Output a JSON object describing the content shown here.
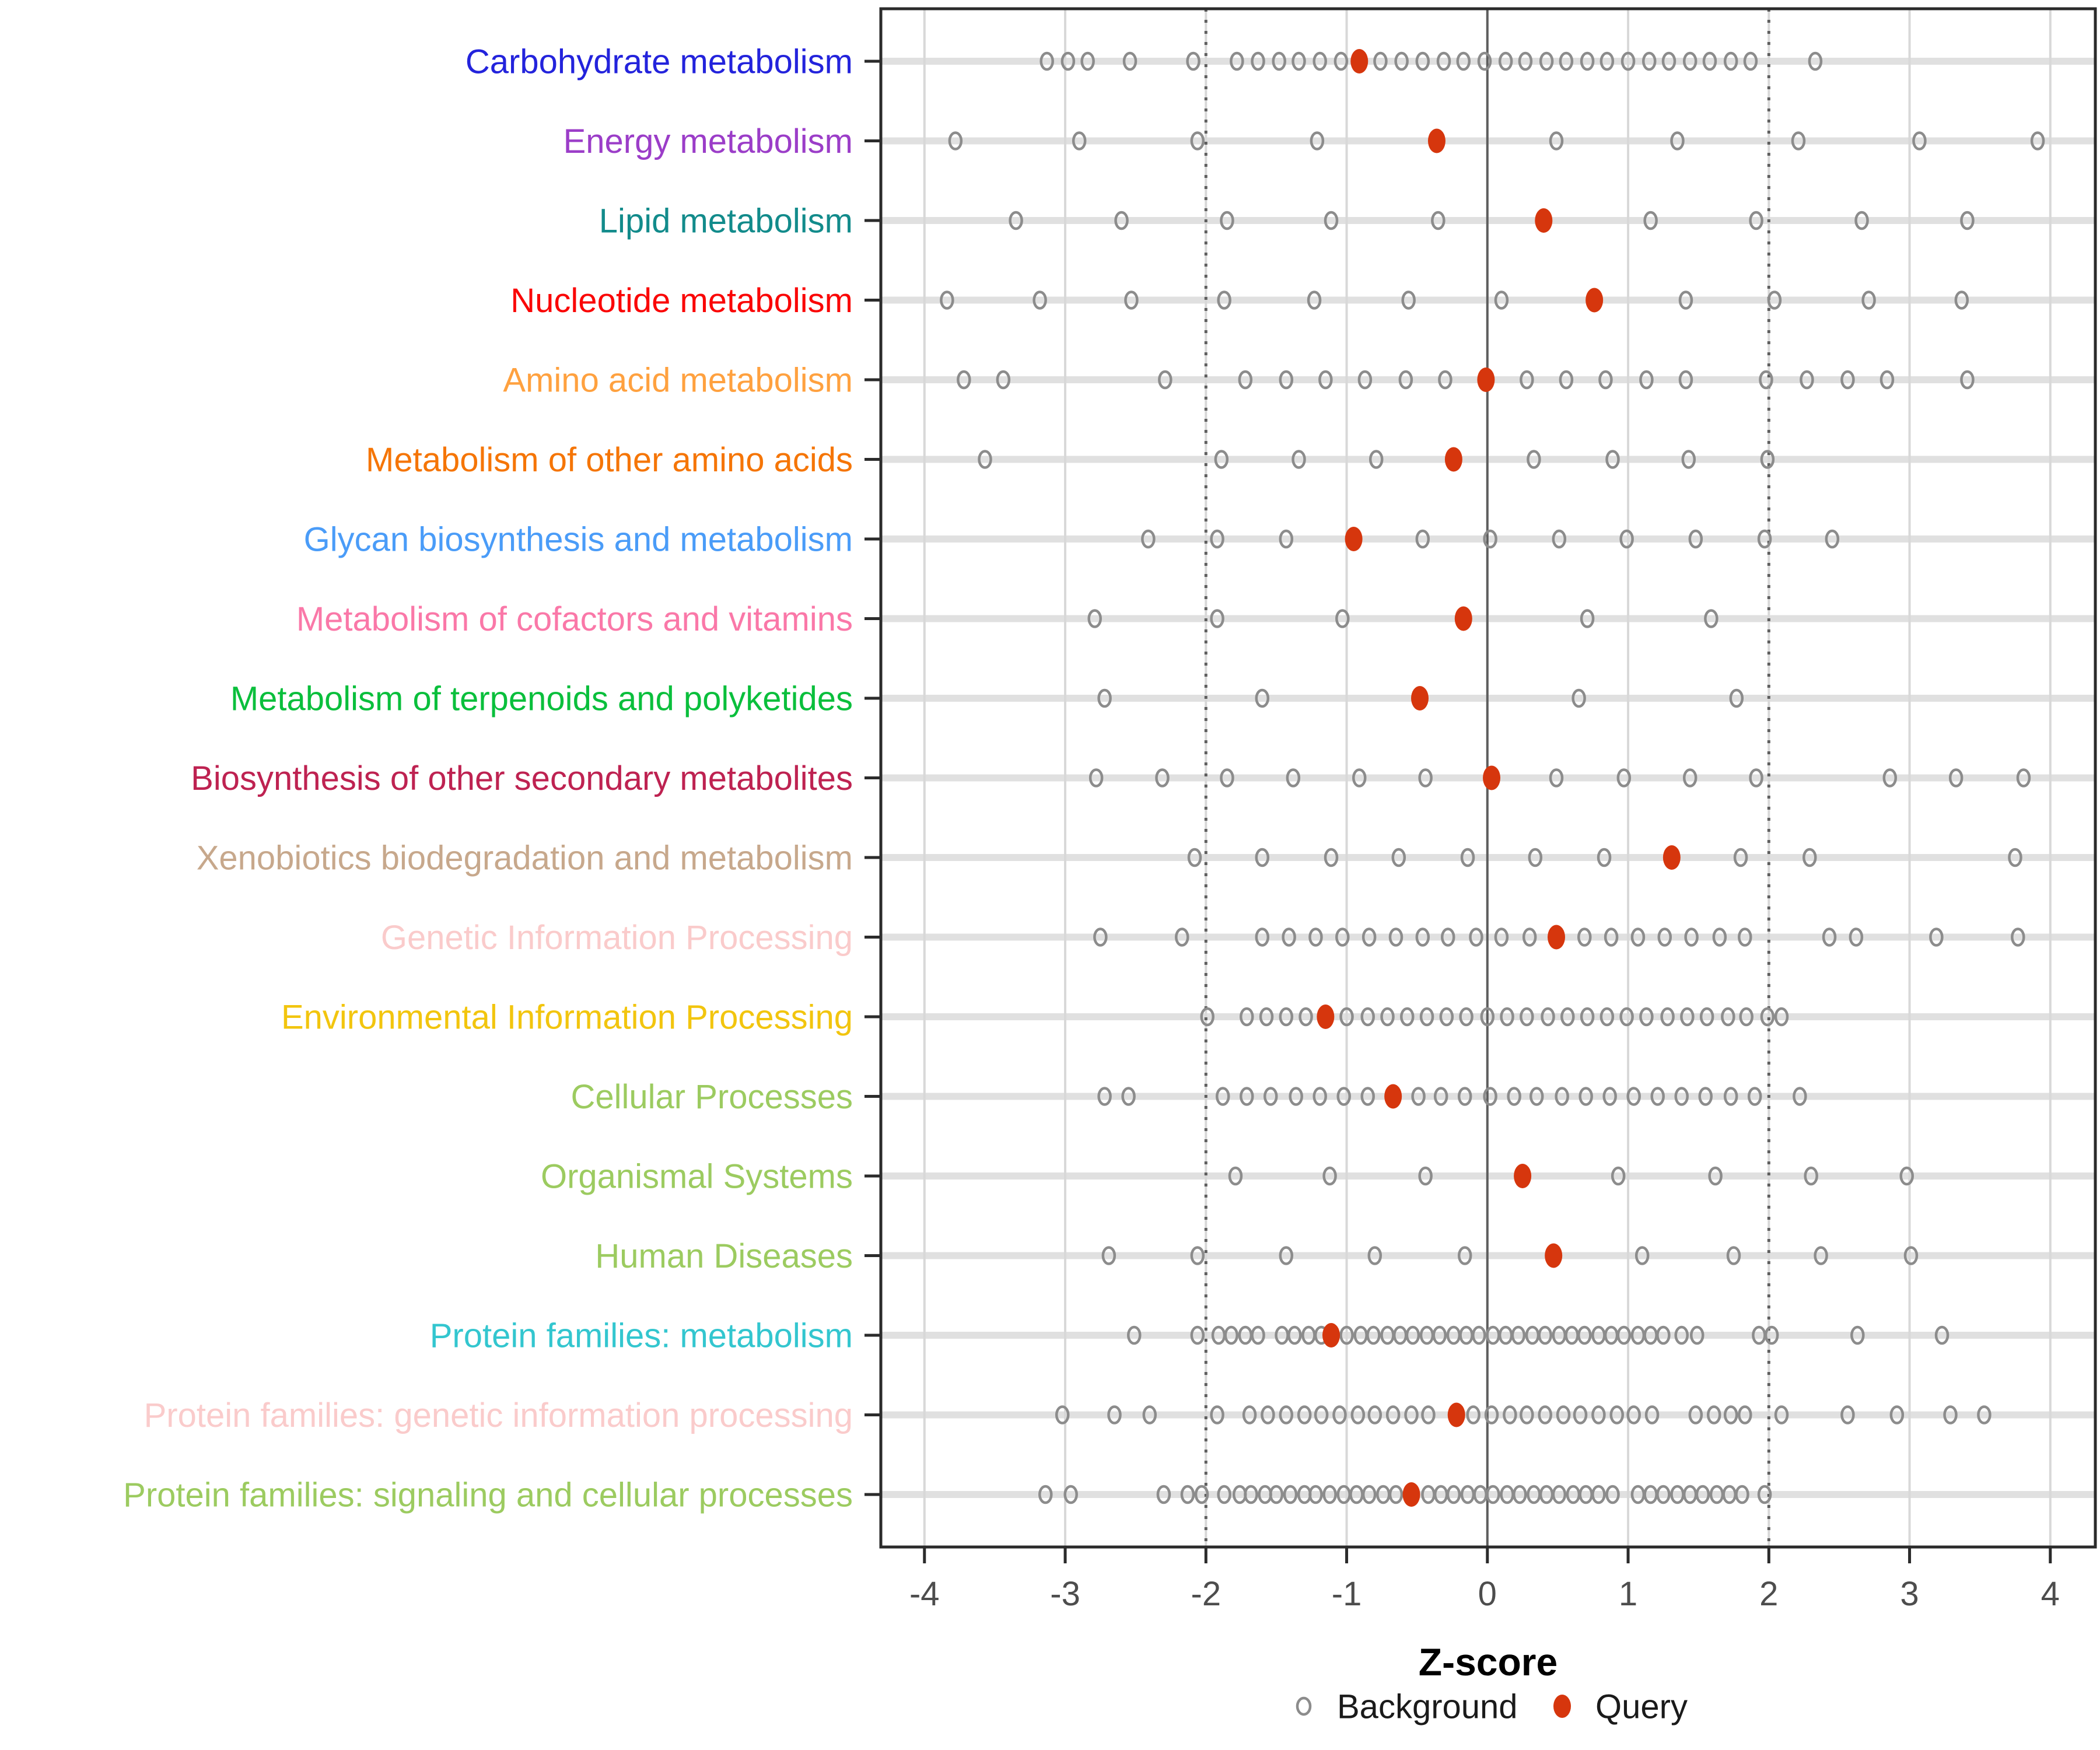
{
  "chart_data": {
    "type": "scatter",
    "title": "",
    "xlabel": "Z-score",
    "xlim": [
      -4.31,
      4.32
    ],
    "xticks": [
      -4,
      -3,
      -2,
      -1,
      0,
      1,
      2,
      3,
      4
    ],
    "grid": "on",
    "reference_lines": {
      "solid_at": 0,
      "dotted_at": [
        -2,
        2
      ]
    },
    "legend_position": "bottom-center",
    "legend": [
      {
        "label": "Background",
        "marker": "open-circle",
        "color": "#8C8C8C"
      },
      {
        "label": "Query",
        "marker": "filled-circle",
        "color": "#D6360D"
      }
    ],
    "background_marker_color": "#8C8C8C",
    "query_marker_color": "#D6360D",
    "categories": [
      {
        "label": "Carbohydrate metabolism",
        "color": "#2323DC",
        "query": -0.91,
        "background": [
          -3.13,
          -2.98,
          -2.84,
          -2.54,
          -2.09,
          -1.78,
          -1.63,
          -1.48,
          -1.34,
          -1.19,
          -1.04,
          -0.76,
          -0.61,
          -0.46,
          -0.31,
          -0.17,
          -0.02,
          0.13,
          0.27,
          0.42,
          0.56,
          0.71,
          0.85,
          1.0,
          1.15,
          1.29,
          1.44,
          1.58,
          1.73,
          1.87,
          2.33
        ]
      },
      {
        "label": "Energy metabolism",
        "color": "#9B3DC8",
        "query": -0.36,
        "background": [
          -3.78,
          -2.9,
          -2.06,
          -1.21,
          0.49,
          1.35,
          2.21,
          3.07,
          3.91
        ]
      },
      {
        "label": "Lipid metabolism",
        "color": "#128B8B",
        "query": 0.4,
        "background": [
          -3.35,
          -2.6,
          -1.85,
          -1.11,
          -0.35,
          1.16,
          1.91,
          2.66,
          3.41
        ]
      },
      {
        "label": "Nucleotide metabolism",
        "color": "#FA0505",
        "query": 0.76,
        "background": [
          -3.84,
          -3.18,
          -2.53,
          -1.87,
          -1.23,
          -0.56,
          0.1,
          1.41,
          2.04,
          2.71,
          3.37
        ]
      },
      {
        "label": "Amino acid metabolism",
        "color": "#FFA13F",
        "query": -0.01,
        "background": [
          -3.72,
          -3.44,
          -2.29,
          -1.72,
          -1.43,
          -1.15,
          -0.87,
          -0.58,
          -0.3,
          0.28,
          0.56,
          0.84,
          1.13,
          1.41,
          1.98,
          2.27,
          2.56,
          2.84,
          3.41
        ]
      },
      {
        "label": "Metabolism of other amino acids",
        "color": "#F57506",
        "query": -0.24,
        "background": [
          -3.57,
          -1.89,
          -1.34,
          -0.79,
          0.33,
          0.89,
          1.43,
          1.99
        ]
      },
      {
        "label": "Glycan biosynthesis and metabolism",
        "color": "#4A9CF8",
        "query": -0.95,
        "background": [
          -2.41,
          -1.92,
          -1.43,
          -0.46,
          0.02,
          0.51,
          0.99,
          1.48,
          1.97,
          2.45
        ]
      },
      {
        "label": "Metabolism of cofactors and vitamins",
        "color": "#FA78A8",
        "query": -0.17,
        "background": [
          -2.79,
          -1.92,
          -1.03,
          0.71,
          1.59
        ]
      },
      {
        "label": "Metabolism of terpenoids and polyketides",
        "color": "#0ABF3C",
        "query": -0.48,
        "background": [
          -2.72,
          -1.6,
          0.65,
          1.77
        ]
      },
      {
        "label": "Biosynthesis of other secondary metabolites",
        "color": "#BE2251",
        "query": 0.03,
        "background": [
          -2.78,
          -2.31,
          -1.85,
          -1.38,
          -0.91,
          -0.44,
          0.49,
          0.97,
          1.44,
          1.91,
          2.86,
          3.33,
          3.81
        ]
      },
      {
        "label": "Xenobiotics biodegradation and metabolism",
        "color": "#C7A88C",
        "query": 1.31,
        "background": [
          -2.08,
          -1.6,
          -1.11,
          -0.63,
          -0.14,
          0.34,
          0.83,
          1.8,
          2.29,
          3.75
        ]
      },
      {
        "label": "Genetic Information Processing",
        "color": "#FACBCB",
        "query": 0.49,
        "background": [
          -2.75,
          -2.17,
          -1.6,
          -1.41,
          -1.22,
          -1.03,
          -0.84,
          -0.65,
          -0.46,
          -0.28,
          -0.08,
          0.1,
          0.3,
          0.69,
          0.88,
          1.07,
          1.26,
          1.45,
          1.65,
          1.83,
          2.43,
          2.62,
          3.19,
          3.77
        ]
      },
      {
        "label": "Environmental Information Processing",
        "color": "#F2C50E",
        "query": -1.15,
        "background": [
          -1.99,
          -1.71,
          -1.57,
          -1.43,
          -1.29,
          -1.0,
          -0.85,
          -0.71,
          -0.57,
          -0.43,
          -0.29,
          -0.15,
          0.0,
          0.14,
          0.28,
          0.43,
          0.57,
          0.71,
          0.85,
          0.99,
          1.13,
          1.28,
          1.42,
          1.56,
          1.71,
          1.84,
          1.99,
          2.09
        ]
      },
      {
        "label": "Cellular Processes",
        "color": "#9CCB60",
        "query": -0.67,
        "background": [
          -2.72,
          -2.55,
          -1.88,
          -1.71,
          -1.54,
          -1.36,
          -1.19,
          -1.02,
          -0.85,
          -0.49,
          -0.33,
          -0.16,
          0.02,
          0.19,
          0.35,
          0.53,
          0.7,
          0.87,
          1.04,
          1.21,
          1.38,
          1.55,
          1.73,
          1.9,
          2.22
        ]
      },
      {
        "label": "Organismal Systems",
        "color": "#9CCB60",
        "query": 0.25,
        "background": [
          -1.79,
          -1.12,
          -0.44,
          0.93,
          1.62,
          2.3,
          2.98
        ]
      },
      {
        "label": "Human Diseases",
        "color": "#9CCB60",
        "query": 0.47,
        "background": [
          -2.69,
          -2.06,
          -1.43,
          -0.8,
          -0.16,
          1.1,
          1.75,
          2.37,
          3.01
        ]
      },
      {
        "label": "Protein families: metabolism",
        "color": "#33C6CF",
        "query": -1.11,
        "background": [
          -2.51,
          -2.06,
          -1.91,
          -1.82,
          -1.72,
          -1.63,
          -1.46,
          -1.37,
          -1.27,
          -1.18,
          -1.0,
          -0.9,
          -0.81,
          -0.71,
          -0.62,
          -0.53,
          -0.43,
          -0.34,
          -0.24,
          -0.15,
          -0.06,
          0.04,
          0.13,
          0.22,
          0.32,
          0.41,
          0.51,
          0.6,
          0.69,
          0.79,
          0.88,
          0.97,
          1.07,
          1.16,
          1.25,
          1.38,
          1.49,
          1.93,
          2.02,
          2.63,
          3.23
        ]
      },
      {
        "label": "Protein families: genetic information processing",
        "color": "#FACBCB",
        "query": -0.22,
        "background": [
          -3.02,
          -2.65,
          -2.4,
          -1.92,
          -1.69,
          -1.56,
          -1.43,
          -1.3,
          -1.18,
          -1.05,
          -0.92,
          -0.8,
          -0.67,
          -0.54,
          -0.42,
          -0.1,
          0.03,
          0.16,
          0.28,
          0.41,
          0.54,
          0.66,
          0.79,
          0.92,
          1.04,
          1.17,
          1.48,
          1.61,
          1.73,
          1.83,
          2.09,
          2.56,
          2.91,
          3.29,
          3.53
        ]
      },
      {
        "label": "Protein families: signaling and cellular processes",
        "color": "#9CCB60",
        "query": -0.54,
        "background": [
          -3.14,
          -2.96,
          -2.3,
          -2.13,
          -2.03,
          -1.87,
          -1.76,
          -1.68,
          -1.58,
          -1.5,
          -1.4,
          -1.3,
          -1.22,
          -1.12,
          -1.02,
          -0.93,
          -0.84,
          -0.74,
          -0.65,
          -0.42,
          -0.33,
          -0.24,
          -0.14,
          -0.05,
          0.04,
          0.14,
          0.23,
          0.33,
          0.42,
          0.51,
          0.61,
          0.7,
          0.79,
          0.89,
          1.07,
          1.16,
          1.25,
          1.35,
          1.44,
          1.53,
          1.63,
          1.72,
          1.81,
          1.97
        ]
      }
    ],
    "style_colors": {
      "row_gridline": "#E0E0E0",
      "v_gridline": "#D8D8D8",
      "reference_line": "#5E5E5E",
      "panel_border": "#2B2B2B",
      "tick_label": "#4D4D4D",
      "axis_title": "#000000",
      "legend_text": "#1A1A1A"
    }
  }
}
